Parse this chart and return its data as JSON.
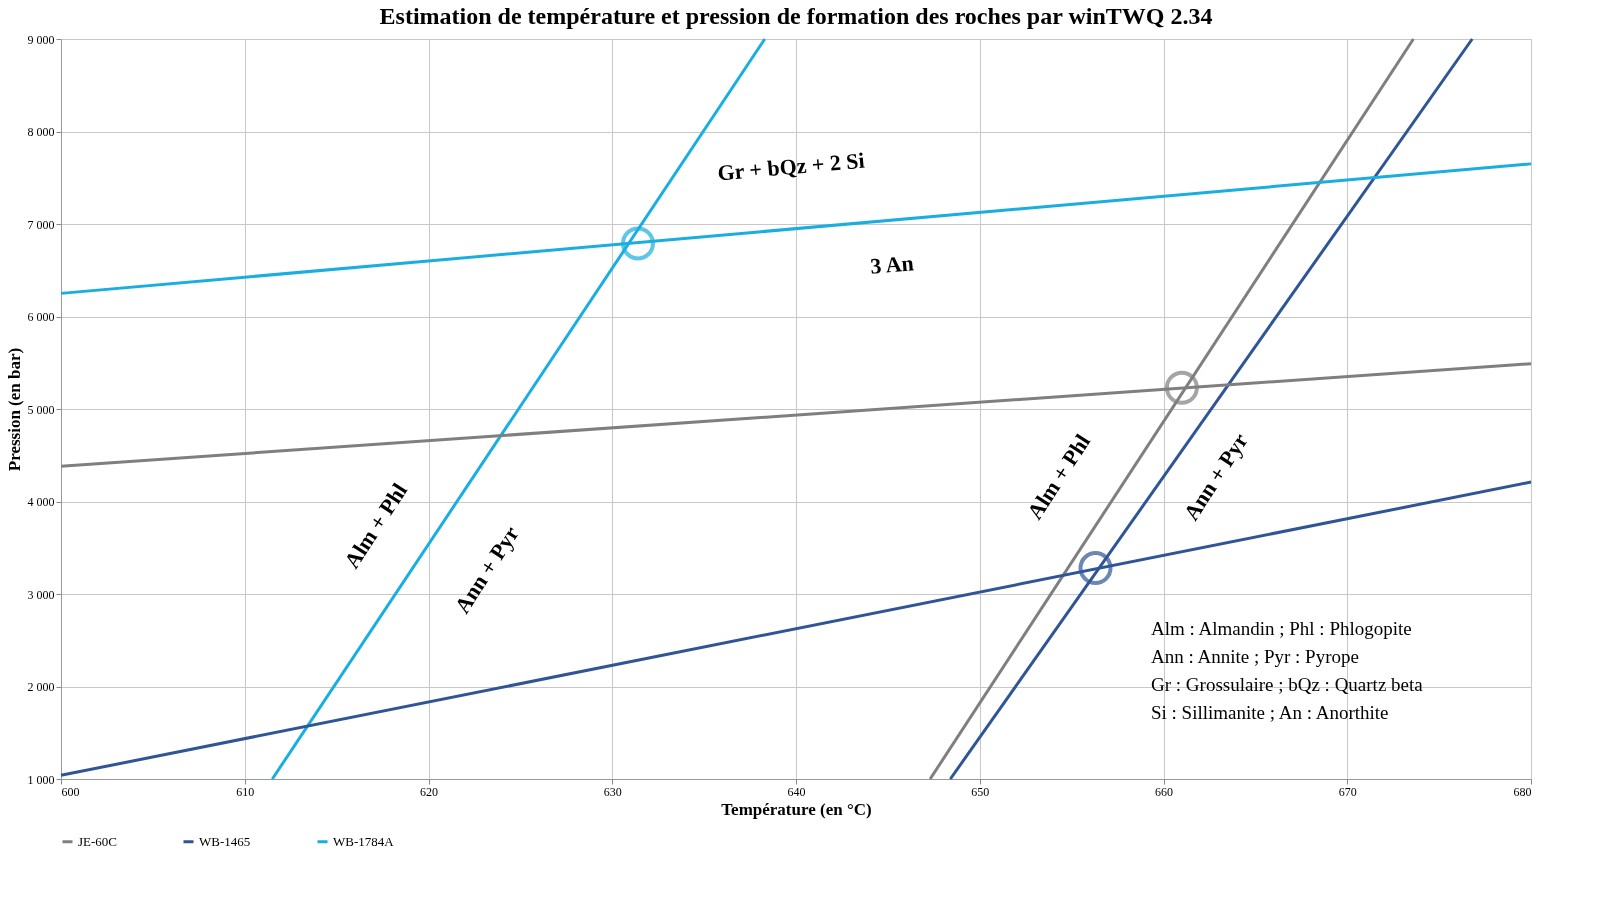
{
  "chart_data": {
    "type": "line",
    "title": "Estimation  de température  et pression  de formation  des roches  par winTWQ  2.34",
    "xlabel": "Température  (en °C)",
    "ylabel": "Pression (en bar)",
    "xlim": [
      600,
      680
    ],
    "xticks": [
      600,
      610,
      620,
      630,
      640,
      650,
      660,
      670,
      680
    ],
    "ylim": [
      1000,
      9000
    ],
    "yticks": [
      {
        "value": 1000,
        "label": "1 000"
      },
      {
        "value": 2000,
        "label": "2 000"
      },
      {
        "value": 3000,
        "label": "3 000"
      },
      {
        "value": 4000,
        "label": "4 000"
      },
      {
        "value": 5000,
        "label": "5 000"
      },
      {
        "value": 6000,
        "label": "6 000"
      },
      {
        "value": 7000,
        "label": "7 000"
      },
      {
        "value": 8000,
        "label": "8 000"
      },
      {
        "value": 9000,
        "label": "9 000"
      }
    ],
    "grid": true,
    "legend": "bottom",
    "line_style": "solid",
    "marker": "none",
    "series": [
      {
        "name": "JE-60C",
        "color": "#7f7f7f",
        "x": [
          647.3,
          673.6
        ],
        "values": [
          1000,
          9000
        ]
      },
      {
        "name": "WB-1465",
        "color": "#2f5597",
        "x": [
          648.4,
          676.8
        ],
        "values": [
          1000,
          9000
        ]
      },
      {
        "name": "WB-1784A",
        "color": "#1aaee0",
        "x": [
          611.5,
          638.3
        ],
        "values": [
          1000,
          9000
        ]
      },
      {
        "color": "#7f7f7f",
        "x": [
          600,
          680
        ],
        "values": [
          4380,
          5490
        ]
      },
      {
        "color": "#2f5597",
        "x": [
          600,
          680
        ],
        "values": [
          1040,
          4210
        ]
      },
      {
        "color": "#1aaee0",
        "x": [
          600,
          680
        ],
        "values": [
          6250,
          7650
        ]
      },
      {
        "type": "scatter",
        "marker": "circle",
        "colors": [
          "#1aaee0",
          "#7f7f7f",
          "#2f5597"
        ],
        "x": [
          631.4,
          661.0,
          656.3
        ],
        "values": [
          6790,
          5230,
          3280
        ]
      }
    ],
    "annotations": [
      "Gr  +   bQz  + 2 Si",
      "3 An",
      "Alm  + Phl",
      "Ann   +     Pyr",
      "Alm  + Phl",
      "Ann   +   Pyr",
      "Alm : Almandin  ; Phl : Phlogopite",
      "Ann : Annite  ; Pyr : Pyrope",
      "Gr : Grossulaire  ; bQz : Quartz beta",
      "Si : Sillimanite  ; An : Anorthite"
    ]
  }
}
